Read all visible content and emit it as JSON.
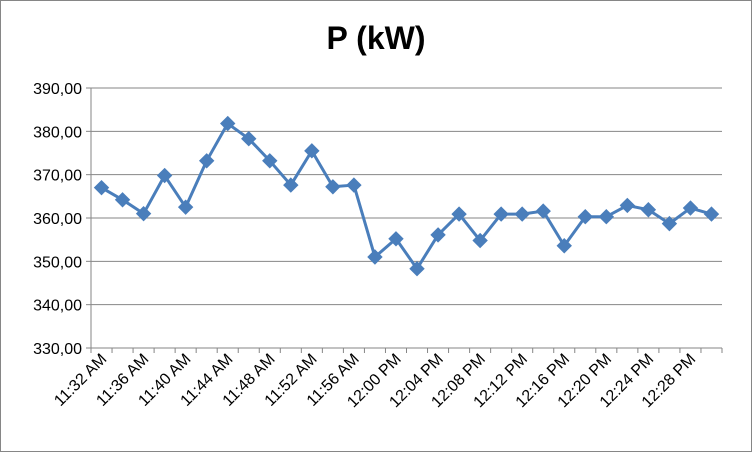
{
  "chart_data": {
    "type": "line",
    "title": "P (kW)",
    "xlabel": "",
    "ylabel": "",
    "ylim": [
      330,
      390
    ],
    "y_ticks": [
      "330,00",
      "340,00",
      "350,00",
      "360,00",
      "370,00",
      "380,00",
      "390,00"
    ],
    "grid": true,
    "legend": "none",
    "x": [
      "11:32 AM",
      "11:34 AM",
      "11:36 AM",
      "11:38 AM",
      "11:40 AM",
      "11:42 AM",
      "11:44 AM",
      "11:46 AM",
      "11:48 AM",
      "11:50 AM",
      "11:52 AM",
      "11:54 AM",
      "11:56 AM",
      "11:58 AM",
      "12:00 PM",
      "12:02 PM",
      "12:04 PM",
      "12:06 PM",
      "12:08 PM",
      "12:10 PM",
      "12:12 PM",
      "12:14 PM",
      "12:16 PM",
      "12:18 PM",
      "12:20 PM",
      "12:22 PM",
      "12:24 PM",
      "12:26 PM",
      "12:28 PM",
      "12:30 PM"
    ],
    "x_tick_labels": [
      "11:32 AM",
      "11:36 AM",
      "11:40 AM",
      "11:44 AM",
      "11:48 AM",
      "11:52 AM",
      "11:56 AM",
      "12:00 PM",
      "12:04 PM",
      "12:08 PM",
      "12:12 PM",
      "12:16 PM",
      "12:20 PM",
      "12:24 PM",
      "12:28 PM"
    ],
    "series": [
      {
        "values": [
          367.0,
          364.2,
          361.0,
          369.8,
          362.5,
          373.2,
          381.8,
          378.3,
          373.2,
          367.6,
          375.5,
          367.2,
          367.6,
          351.0,
          355.2,
          348.3,
          356.1,
          360.9,
          354.8,
          360.9,
          360.9,
          361.6,
          353.6,
          360.3,
          360.3,
          362.9,
          361.9,
          358.7,
          362.3,
          360.9
        ]
      }
    ],
    "colors": {
      "series": "#4a7ebb",
      "grid": "#868686",
      "axis": "#868686"
    }
  }
}
